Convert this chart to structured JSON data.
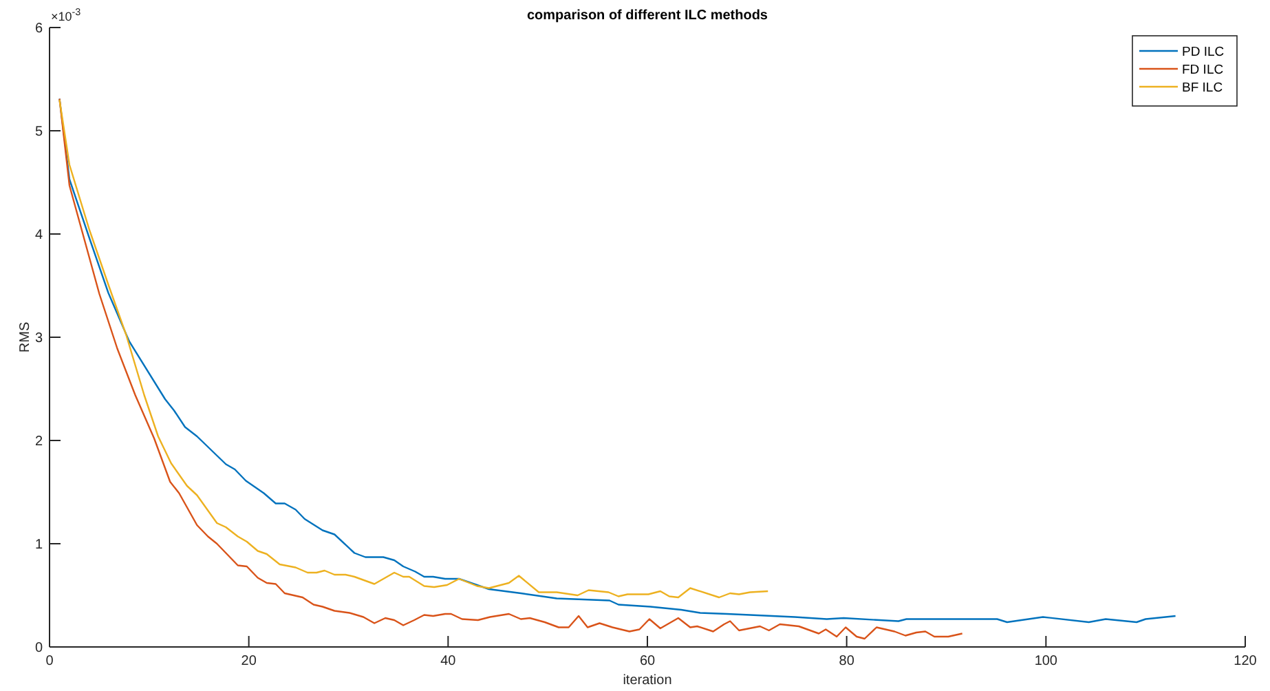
{
  "chart_data": {
    "type": "line",
    "title": "comparison of different ILC methods",
    "xlabel": "iteration",
    "ylabel": "RMS",
    "annotations": [
      "×10$^{-3}$"
    ],
    "xlim": [
      0,
      120
    ],
    "xticks": [
      0,
      20,
      40,
      60,
      80,
      100,
      120
    ],
    "ylim": [
      0,
      6
    ],
    "yticks": [
      0,
      1,
      2,
      3,
      4,
      5,
      6
    ],
    "grid": false,
    "legend": "top right",
    "line_style": "solid",
    "marker": "none",
    "series": [
      {
        "name": "PD ILC",
        "color": "#0072bd",
        "x": [
          1,
          2,
          4,
          5.9,
          8,
          11.6,
          12.5,
          13.6,
          14.8,
          17.7,
          18.6,
          19.7,
          21.5,
          22.7,
          23.6,
          24.7,
          25.6,
          27.4,
          28.6,
          30.6,
          31.7,
          33.5,
          34.6,
          35.5,
          36.7,
          37.6,
          38.5,
          39.7,
          41.1,
          44.1,
          47.3,
          50.9,
          56.2,
          57.1,
          60.3,
          63.4,
          65.3,
          68,
          70.3,
          74.8,
          78,
          79.7,
          85.2,
          86,
          95.1,
          96.1,
          99.7,
          104.3,
          106,
          109.1,
          110,
          113
        ],
        "values": [
          5.31,
          4.53,
          3.96,
          3.43,
          2.96,
          2.4,
          2.29,
          2.13,
          2.04,
          1.77,
          1.72,
          1.61,
          1.49,
          1.39,
          1.39,
          1.33,
          1.24,
          1.13,
          1.09,
          0.91,
          0.87,
          0.87,
          0.84,
          0.78,
          0.73,
          0.68,
          0.68,
          0.66,
          0.66,
          0.56,
          0.52,
          0.47,
          0.45,
          0.41,
          0.39,
          0.36,
          0.33,
          0.32,
          0.31,
          0.29,
          0.27,
          0.28,
          0.25,
          0.27,
          0.27,
          0.24,
          0.29,
          0.24,
          0.27,
          0.24,
          0.27,
          0.3
        ]
      },
      {
        "name": "FD ILC",
        "color": "#d95319",
        "x": [
          1,
          2,
          3.6,
          5,
          6.8,
          8.6,
          10.5,
          12.1,
          13,
          14.8,
          15.9,
          16.8,
          18.9,
          19.8,
          20.9,
          21.8,
          22.7,
          23.6,
          25.4,
          26.5,
          27.4,
          28.6,
          30.1,
          31.5,
          32.6,
          33.7,
          34.6,
          35.5,
          36.6,
          37.6,
          38.5,
          39.7,
          40.3,
          41.4,
          43,
          44.2,
          46.1,
          47.3,
          48.2,
          49.7,
          51.1,
          52.1,
          53.1,
          54,
          55.2,
          56.5,
          58.2,
          59.2,
          60.2,
          61.3,
          63.1,
          64.3,
          65,
          66.6,
          67.7,
          68.3,
          69.2,
          71.3,
          72.2,
          73.3,
          75.2,
          77.2,
          77.9,
          79,
          79.9,
          81,
          81.8,
          83,
          84.8,
          85.9,
          87,
          87.9,
          88.8,
          90.2,
          91.6
        ],
        "values": [
          5.31,
          4.47,
          3.91,
          3.42,
          2.89,
          2.44,
          2.02,
          1.6,
          1.49,
          1.18,
          1.07,
          1,
          0.79,
          0.78,
          0.67,
          0.62,
          0.61,
          0.52,
          0.48,
          0.41,
          0.39,
          0.35,
          0.33,
          0.29,
          0.23,
          0.28,
          0.26,
          0.21,
          0.26,
          0.31,
          0.3,
          0.32,
          0.32,
          0.27,
          0.26,
          0.29,
          0.32,
          0.27,
          0.28,
          0.24,
          0.19,
          0.19,
          0.3,
          0.19,
          0.23,
          0.19,
          0.15,
          0.17,
          0.27,
          0.18,
          0.28,
          0.19,
          0.2,
          0.15,
          0.22,
          0.25,
          0.16,
          0.2,
          0.16,
          0.22,
          0.2,
          0.13,
          0.17,
          0.1,
          0.19,
          0.1,
          0.08,
          0.19,
          0.15,
          0.11,
          0.14,
          0.15,
          0.1,
          0.1,
          0.13
        ]
      },
      {
        "name": "BF ILC",
        "color": "#edb120",
        "x": [
          1,
          2,
          4,
          5.9,
          7.7,
          9.5,
          10.9,
          12.2,
          13.8,
          14.8,
          16.8,
          17.7,
          18.9,
          19.8,
          20.9,
          21.8,
          23.1,
          24.7,
          25.9,
          26.8,
          27.6,
          28.6,
          29.7,
          30.6,
          32.6,
          34.6,
          35.5,
          36.1,
          37.6,
          38.6,
          39.9,
          41.1,
          42.9,
          44.1,
          46.1,
          47.1,
          49.1,
          50.9,
          53,
          54.1,
          56.1,
          57.1,
          58,
          60.1,
          61.3,
          62.2,
          63.1,
          64.3,
          67.2,
          68.3,
          69.2,
          70.3,
          72.1
        ],
        "values": [
          5.3,
          4.67,
          4.04,
          3.51,
          3.02,
          2.44,
          2.04,
          1.78,
          1.56,
          1.47,
          1.2,
          1.16,
          1.07,
          1.02,
          0.93,
          0.9,
          0.8,
          0.77,
          0.72,
          0.72,
          0.74,
          0.7,
          0.7,
          0.68,
          0.61,
          0.72,
          0.68,
          0.68,
          0.59,
          0.58,
          0.6,
          0.66,
          0.59,
          0.57,
          0.62,
          0.69,
          0.53,
          0.53,
          0.5,
          0.55,
          0.53,
          0.49,
          0.51,
          0.51,
          0.54,
          0.49,
          0.48,
          0.57,
          0.48,
          0.52,
          0.51,
          0.53,
          0.54
        ]
      }
    ]
  }
}
